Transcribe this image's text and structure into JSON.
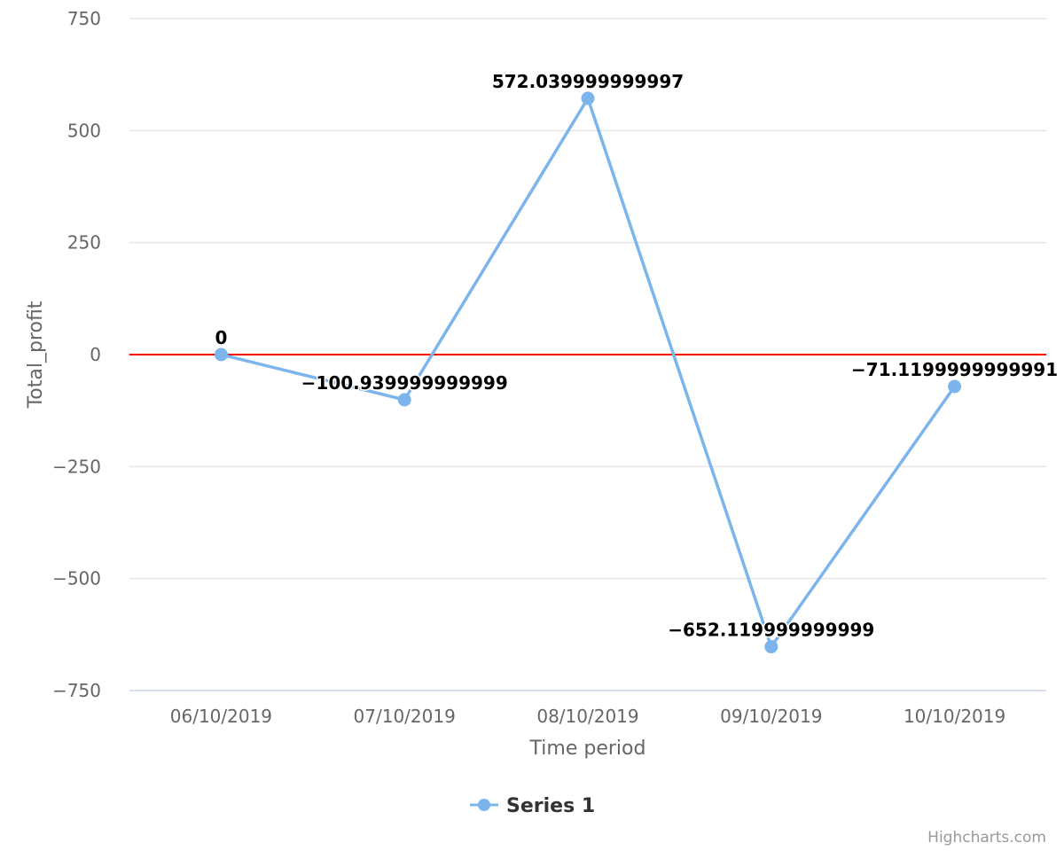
{
  "chart_data": {
    "type": "line",
    "title": "",
    "xlabel": "Time period",
    "ylabel": "Total_profit",
    "categories": [
      "06/10/2019",
      "07/10/2019",
      "08/10/2019",
      "09/10/2019",
      "10/10/2019"
    ],
    "ylim": [
      -750,
      750
    ],
    "yticks": [
      750,
      500,
      250,
      0,
      -250,
      -500,
      -750
    ],
    "ytick_labels": [
      "750",
      "500",
      "250",
      "0",
      "−250",
      "−500",
      "−750"
    ],
    "grid": true,
    "legend_position": "bottom-center",
    "series": [
      {
        "name": "Series 1",
        "color": "#7cb5ec",
        "values": [
          0,
          -100.939999999999,
          572.039999999997,
          -652.119999999999,
          -71.1199999999991
        ],
        "data_labels": [
          "0",
          "−100.939999999999",
          "572.039999999997",
          "−652.119999999999",
          "−71.1199999999991"
        ]
      }
    ],
    "zero_line_color": "#ff0000",
    "credits": "Highcharts.com"
  }
}
